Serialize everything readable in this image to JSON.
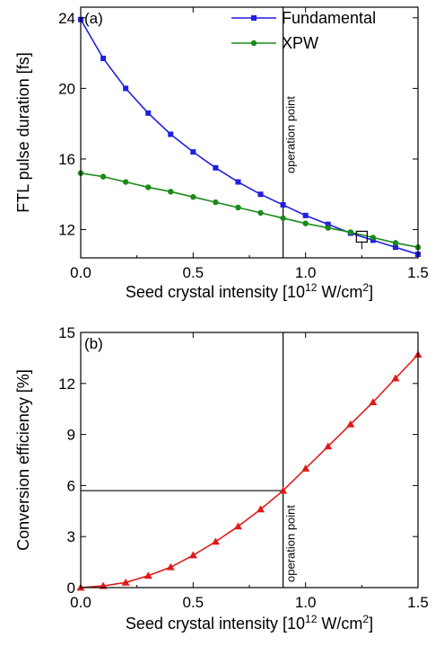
{
  "chart_data": [
    {
      "type": "line",
      "panel_label": "(a)",
      "xlabel": "Seed crystal intensity [10",
      "xlabel_sup": "12",
      "xlabel_rest": " W/cm",
      "xlabel_sup2": "2",
      "xlabel_end": "]",
      "ylabel": "FTL pulse duration [fs]",
      "xlim": [
        0,
        1.5
      ],
      "ylim": [
        10.4,
        24.6
      ],
      "xticks": [
        0,
        0.5,
        1.0,
        1.5
      ],
      "xtick_labels": [
        "0.0",
        "0.5",
        "1.0",
        "1.5"
      ],
      "yticks": [
        12,
        16,
        20,
        24
      ],
      "ytick_labels": [
        "12",
        "16",
        "20",
        "24"
      ],
      "legend_position": "top-right",
      "annotation": "operation point",
      "operation_point_x": 0.9,
      "marker_box": {
        "x": 1.25,
        "y": 11.6
      },
      "series": [
        {
          "name": "Fundamental",
          "color": "#1f1fe0",
          "marker": "square",
          "x": [
            0,
            0.1,
            0.2,
            0.3,
            0.4,
            0.5,
            0.6,
            0.7,
            0.8,
            0.9,
            1.0,
            1.1,
            1.2,
            1.3,
            1.4,
            1.5
          ],
          "y": [
            23.9,
            21.7,
            20.0,
            18.6,
            17.4,
            16.4,
            15.5,
            14.7,
            14.0,
            13.4,
            12.8,
            12.3,
            11.8,
            11.4,
            11.0,
            10.6
          ]
        },
        {
          "name": "XPW",
          "color": "#1a8a1a",
          "marker": "circle",
          "x": [
            0,
            0.1,
            0.2,
            0.3,
            0.4,
            0.5,
            0.6,
            0.7,
            0.8,
            0.9,
            1.0,
            1.1,
            1.2,
            1.3,
            1.4,
            1.5
          ],
          "y": [
            15.2,
            15.0,
            14.7,
            14.4,
            14.15,
            13.85,
            13.55,
            13.25,
            12.95,
            12.65,
            12.35,
            12.1,
            11.85,
            11.55,
            11.25,
            11.0
          ]
        }
      ]
    },
    {
      "type": "line",
      "panel_label": "(b)",
      "xlabel": "Seed crystal intensity [10",
      "xlabel_sup": "12",
      "xlabel_rest": " W/cm",
      "xlabel_sup2": "2",
      "xlabel_end": "]",
      "ylabel": "Conversion efficiency [%]",
      "xlim": [
        0,
        1.5
      ],
      "ylim": [
        0,
        15
      ],
      "xticks": [
        0,
        0.5,
        1.0,
        1.5
      ],
      "xtick_labels": [
        "0.0",
        "0.5",
        "1.0",
        "1.5"
      ],
      "yticks": [
        0,
        3,
        6,
        9,
        12,
        15
      ],
      "ytick_labels": [
        "0",
        "3",
        "6",
        "9",
        "12",
        "15"
      ],
      "annotation": "operation point",
      "operation_point_x": 0.9,
      "operation_point_y": 5.7,
      "series": [
        {
          "color": "#e01a1a",
          "marker": "triangle",
          "x": [
            0,
            0.1,
            0.2,
            0.3,
            0.4,
            0.5,
            0.6,
            0.7,
            0.8,
            0.9,
            1.0,
            1.1,
            1.2,
            1.3,
            1.4,
            1.5
          ],
          "y": [
            0.0,
            0.1,
            0.3,
            0.7,
            1.2,
            1.9,
            2.7,
            3.6,
            4.6,
            5.7,
            7.0,
            8.3,
            9.6,
            10.9,
            12.3,
            13.7
          ]
        }
      ]
    }
  ]
}
